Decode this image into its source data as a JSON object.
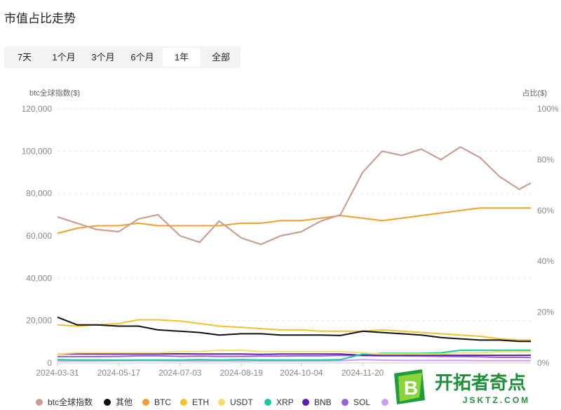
{
  "page": {
    "title": "市值占比走势"
  },
  "range_tabs": [
    {
      "label": "7天",
      "active": false
    },
    {
      "label": "1个月",
      "active": false
    },
    {
      "label": "3个月",
      "active": false
    },
    {
      "label": "6个月",
      "active": false
    },
    {
      "label": "1年",
      "active": true
    },
    {
      "label": "全部",
      "active": false
    }
  ],
  "watermark": {
    "name": "开拓者奇点",
    "domain": "JSKTZ.COM",
    "badge_letter": "B"
  },
  "chart_data": {
    "type": "line",
    "xlabel": "",
    "ylabel_left": "btc全球指数($)",
    "ylabel_right": "占比($)",
    "ylim_left": [
      0,
      120000
    ],
    "ylim_right": [
      0,
      100
    ],
    "left_ticks": [
      "0",
      "20,000",
      "40,000",
      "60,000",
      "80,000",
      "100,000",
      "120,000"
    ],
    "right_ticks": [
      "0%",
      "20%",
      "40%",
      "60%",
      "80%",
      "100%"
    ],
    "x_ticks": [
      "2024-03-31",
      "2024-05-17",
      "2024-07-03",
      "2024-08-19",
      "2024-10-04",
      "2024-11-20"
    ],
    "grid": true,
    "legend_position": "bottom",
    "colors": {
      "btc全球指数": "#c9a096",
      "其他": "#111111",
      "BTC": "#f0a030",
      "ETH": "#f2c230",
      "USDT": "#f7e06a",
      "XRP": "#1cc8a0",
      "BNB": "#5a1ea8",
      "SOL": "#9b5fdc",
      "extra": "#c9a0f0"
    },
    "x_dates": [
      "2024-03-31",
      "2024-04-15",
      "2024-04-30",
      "2024-05-17",
      "2024-06-01",
      "2024-06-16",
      "2024-07-03",
      "2024-07-18",
      "2024-08-02",
      "2024-08-19",
      "2024-09-03",
      "2024-09-18",
      "2024-10-04",
      "2024-10-19",
      "2024-11-03",
      "2024-11-20",
      "2024-12-05",
      "2024-12-20",
      "2025-01-04",
      "2025-01-19",
      "2025-02-03",
      "2025-02-18",
      "2025-03-05",
      "2025-03-20",
      "2025-03-29"
    ],
    "series": [
      {
        "name": "btc全球指数",
        "axis": "left",
        "values": [
          69000,
          66000,
          63000,
          62000,
          68000,
          70000,
          60000,
          57000,
          67000,
          59000,
          56000,
          60000,
          62000,
          67000,
          70000,
          90000,
          100000,
          98000,
          101000,
          96000,
          102000,
          97000,
          88000,
          82000,
          85000
        ]
      },
      {
        "name": "其他",
        "axis": "right",
        "values": [
          18,
          15,
          15,
          14.5,
          14.5,
          13,
          12.5,
          12,
          11,
          11.5,
          11.5,
          11,
          11,
          11,
          10.8,
          12.5,
          12,
          11.5,
          11,
          10,
          9.5,
          9,
          9,
          8.5,
          8.5
        ]
      },
      {
        "name": "BTC",
        "axis": "right",
        "values": [
          51,
          53,
          54,
          54,
          55,
          54,
          54,
          54,
          54,
          55,
          55,
          56,
          56,
          57,
          58,
          57,
          56,
          57,
          58,
          59,
          60,
          61,
          61,
          61,
          61
        ]
      },
      {
        "name": "ETH",
        "axis": "right",
        "values": [
          15,
          14.5,
          15,
          15.5,
          17,
          17,
          16.5,
          15.5,
          14.5,
          14,
          13.5,
          13,
          13,
          12.5,
          12.5,
          12.5,
          13,
          12.5,
          12,
          11.5,
          11,
          10.5,
          9.5,
          9,
          9
        ]
      },
      {
        "name": "USDT",
        "axis": "right",
        "values": [
          3.5,
          4,
          4,
          4,
          4,
          4,
          4.5,
          4.5,
          5,
          5,
          4.5,
          4.5,
          4.5,
          4.5,
          4.5,
          4,
          3.5,
          3.5,
          3.5,
          3.5,
          4,
          4,
          4.5,
          4.5,
          4.5
        ]
      },
      {
        "name": "XRP",
        "axis": "right",
        "values": [
          1.3,
          1.2,
          1.2,
          1.1,
          1.2,
          1.2,
          1.2,
          1.3,
          1.2,
          1.3,
          1.2,
          1.2,
          1.2,
          1.2,
          1.3,
          3.5,
          3.8,
          3.8,
          3.8,
          4,
          5,
          5,
          5,
          5,
          5
        ]
      },
      {
        "name": "BNB",
        "axis": "right",
        "values": [
          3.5,
          3.6,
          3.5,
          3.5,
          3.5,
          3.5,
          3.6,
          3.5,
          3.5,
          3.5,
          3.4,
          3.5,
          3.5,
          3.5,
          3.5,
          3,
          3,
          3,
          3,
          3,
          3,
          3,
          3,
          3,
          3
        ]
      },
      {
        "name": "SOL",
        "axis": "right",
        "values": [
          2.5,
          2.5,
          2.5,
          2.6,
          2.8,
          2.8,
          2.6,
          2.7,
          2.6,
          2.6,
          2.7,
          2.7,
          2.8,
          2.8,
          3,
          2.9,
          2.8,
          2.8,
          2.7,
          2.6,
          2.5,
          2.4,
          2.2,
          2.2,
          2.1
        ]
      },
      {
        "name": "extra",
        "axis": "right",
        "values": [
          0.8,
          0.8,
          0.8,
          0.9,
          0.9,
          0.9,
          0.8,
          0.8,
          0.8,
          0.8,
          0.8,
          0.8,
          0.8,
          0.8,
          0.9,
          1.3,
          1.1,
          1,
          1,
          1,
          1,
          0.9,
          0.9,
          0.9,
          0.9
        ]
      }
    ]
  }
}
